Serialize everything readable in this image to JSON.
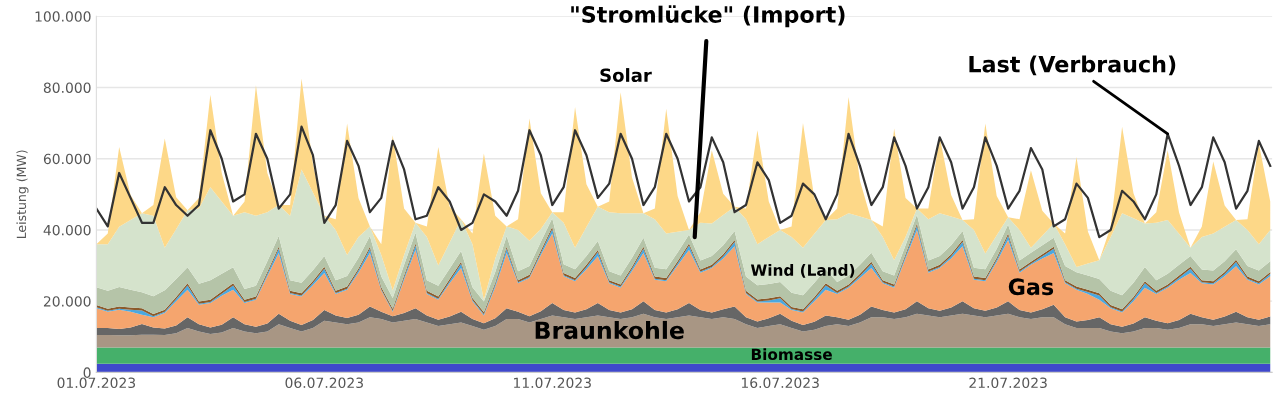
{
  "chart_data": {
    "type": "area",
    "stacked": true,
    "ylabel": "Leistung (MW)",
    "grid": "y",
    "ylim": [
      0,
      100000
    ],
    "yticks": [
      {
        "value": 0,
        "label": "0"
      },
      {
        "value": 20000,
        "label": "20.000"
      },
      {
        "value": 40000,
        "label": "40.000"
      },
      {
        "value": 60000,
        "label": "60.000"
      },
      {
        "value": 80000,
        "label": "80.000"
      },
      {
        "value": 100000,
        "label": "100.000"
      }
    ],
    "xlim": [
      "2023-07-01T00:00",
      "2023-07-26T19:00"
    ],
    "xticks": [
      {
        "value": "2023-07-01",
        "label": "01.07.2023"
      },
      {
        "value": "2023-07-06",
        "label": "06.07.2023"
      },
      {
        "value": "2023-07-11",
        "label": "11.07.2023"
      },
      {
        "value": "2023-07-16",
        "label": "16.07.2023"
      },
      {
        "value": "2023-07-21",
        "label": "21.07.2023"
      }
    ],
    "annotations": [
      {
        "text": "\"Stromlücke\" (Import)",
        "x": "2023-07-14T03:00",
        "y": 38000
      }
    ],
    "x": [
      "2023-07-01T00:00",
      "2023-07-01T06:00",
      "2023-07-01T12:00",
      "2023-07-01T18:00",
      "2023-07-02T00:00",
      "2023-07-02T06:00",
      "2023-07-02T12:00",
      "2023-07-02T18:00",
      "2023-07-03T00:00",
      "2023-07-03T06:00",
      "2023-07-03T12:00",
      "2023-07-03T18:00",
      "2023-07-04T00:00",
      "2023-07-04T06:00",
      "2023-07-04T12:00",
      "2023-07-04T18:00",
      "2023-07-05T00:00",
      "2023-07-05T06:00",
      "2023-07-05T12:00",
      "2023-07-05T18:00",
      "2023-07-06T00:00",
      "2023-07-06T06:00",
      "2023-07-06T12:00",
      "2023-07-06T18:00",
      "2023-07-07T00:00",
      "2023-07-07T06:00",
      "2023-07-07T12:00",
      "2023-07-07T18:00",
      "2023-07-08T00:00",
      "2023-07-08T06:00",
      "2023-07-08T12:00",
      "2023-07-08T18:00",
      "2023-07-09T00:00",
      "2023-07-09T06:00",
      "2023-07-09T12:00",
      "2023-07-09T18:00",
      "2023-07-10T00:00",
      "2023-07-10T06:00",
      "2023-07-10T12:00",
      "2023-07-10T18:00",
      "2023-07-11T00:00",
      "2023-07-11T06:00",
      "2023-07-11T12:00",
      "2023-07-11T18:00",
      "2023-07-12T00:00",
      "2023-07-12T06:00",
      "2023-07-12T12:00",
      "2023-07-12T18:00",
      "2023-07-13T00:00",
      "2023-07-13T06:00",
      "2023-07-13T12:00",
      "2023-07-13T18:00",
      "2023-07-14T00:00",
      "2023-07-14T06:00",
      "2023-07-14T12:00",
      "2023-07-14T18:00",
      "2023-07-15T00:00",
      "2023-07-15T06:00",
      "2023-07-15T12:00",
      "2023-07-15T18:00",
      "2023-07-16T00:00",
      "2023-07-16T06:00",
      "2023-07-16T12:00",
      "2023-07-16T18:00",
      "2023-07-17T00:00",
      "2023-07-17T06:00",
      "2023-07-17T12:00",
      "2023-07-17T18:00",
      "2023-07-18T00:00",
      "2023-07-18T06:00",
      "2023-07-18T12:00",
      "2023-07-18T18:00",
      "2023-07-19T00:00",
      "2023-07-19T06:00",
      "2023-07-19T12:00",
      "2023-07-19T18:00",
      "2023-07-20T00:00",
      "2023-07-20T06:00",
      "2023-07-20T12:00",
      "2023-07-20T18:00",
      "2023-07-21T00:00",
      "2023-07-21T06:00",
      "2023-07-21T12:00",
      "2023-07-21T18:00",
      "2023-07-22T00:00",
      "2023-07-22T06:00",
      "2023-07-22T12:00",
      "2023-07-22T18:00",
      "2023-07-23T00:00",
      "2023-07-23T06:00",
      "2023-07-23T12:00",
      "2023-07-23T18:00",
      "2023-07-24T00:00",
      "2023-07-24T06:00",
      "2023-07-24T12:00",
      "2023-07-24T18:00",
      "2023-07-25T00:00",
      "2023-07-25T06:00",
      "2023-07-25T12:00",
      "2023-07-25T18:00",
      "2023-07-26T00:00",
      "2023-07-26T06:00",
      "2023-07-26T12:00",
      "2023-07-26T18:00"
    ],
    "series": [
      {
        "color": "#3f48cc",
        "values": [
          2400,
          2400,
          2400,
          2400,
          2400,
          2400,
          2400,
          2400,
          2400,
          2400,
          2400,
          2400,
          2400,
          2400,
          2400,
          2400,
          2400,
          2400,
          2400,
          2400,
          2400,
          2400,
          2400,
          2400,
          2400,
          2400,
          2400,
          2400,
          2400,
          2400,
          2400,
          2400,
          2400,
          2400,
          2400,
          2400,
          2400,
          2400,
          2400,
          2400,
          2400,
          2400,
          2400,
          2400,
          2400,
          2400,
          2400,
          2400,
          2400,
          2400,
          2400,
          2400,
          2400,
          2400,
          2400,
          2400,
          2400,
          2400,
          2400,
          2400,
          2400,
          2400,
          2400,
          2400,
          2400,
          2400,
          2400,
          2400,
          2400,
          2400,
          2400,
          2400,
          2400,
          2400,
          2400,
          2400,
          2400,
          2400,
          2400,
          2400,
          2400,
          2400,
          2400,
          2400,
          2400,
          2400,
          2400,
          2400,
          2400,
          2400,
          2400,
          2400,
          2400,
          2400,
          2400,
          2400,
          2400,
          2400,
          2400,
          2400,
          2400,
          2400,
          2400,
          2400
        ]
      },
      {
        "name": "Biomasse",
        "color": "#45b06a",
        "values": [
          4600,
          4600,
          4600,
          4600,
          4600,
          4600,
          4600,
          4600,
          4600,
          4600,
          4600,
          4600,
          4600,
          4600,
          4600,
          4600,
          4600,
          4600,
          4600,
          4600,
          4600,
          4600,
          4600,
          4600,
          4600,
          4600,
          4600,
          4600,
          4600,
          4600,
          4600,
          4600,
          4600,
          4600,
          4600,
          4600,
          4600,
          4600,
          4600,
          4600,
          4600,
          4600,
          4600,
          4600,
          4600,
          4600,
          4600,
          4600,
          4600,
          4600,
          4600,
          4600,
          4600,
          4600,
          4600,
          4600,
          4600,
          4600,
          4600,
          4600,
          4600,
          4600,
          4600,
          4600,
          4600,
          4600,
          4600,
          4600,
          4600,
          4600,
          4600,
          4600,
          4600,
          4600,
          4600,
          4600,
          4600,
          4600,
          4600,
          4600,
          4600,
          4600,
          4600,
          4600,
          4600,
          4600,
          4600,
          4600,
          4600,
          4600,
          4600,
          4600,
          4600,
          4600,
          4600,
          4600,
          4600,
          4600,
          4600,
          4600,
          4600,
          4600,
          4600,
          4600
        ]
      },
      {
        "name": "Braunkohle",
        "color": "#a89684",
        "values": [
          3500,
          3500,
          3400,
          3400,
          3600,
          3600,
          3500,
          4000,
          5500,
          4500,
          3800,
          4200,
          5500,
          4500,
          4000,
          4500,
          6500,
          5500,
          4500,
          5500,
          7500,
          7000,
          6500,
          7000,
          8500,
          8000,
          7000,
          7500,
          8000,
          7000,
          6000,
          6500,
          7000,
          6000,
          5000,
          6000,
          8000,
          8000,
          7000,
          8000,
          9000,
          8500,
          8000,
          8500,
          9000,
          8500,
          8000,
          8500,
          9500,
          8500,
          8000,
          8500,
          9000,
          8500,
          8000,
          8500,
          8000,
          6500,
          5500,
          6000,
          6500,
          5500,
          4500,
          5000,
          6000,
          6500,
          6000,
          7000,
          8500,
          8500,
          8000,
          8500,
          9500,
          9000,
          8500,
          9000,
          9500,
          9000,
          8500,
          9000,
          9500,
          8500,
          8000,
          8500,
          8500,
          6500,
          5500,
          5500,
          5500,
          4500,
          4000,
          4500,
          5500,
          5500,
          5000,
          5500,
          6500,
          6500,
          6000,
          6500,
          7000,
          6500,
          6000,
          6500
        ]
      },
      {
        "color": "#666666",
        "values": [
          2000,
          2000,
          1800,
          2200,
          3000,
          2000,
          1800,
          2200,
          3000,
          2000,
          1800,
          2200,
          3000,
          2000,
          1800,
          2200,
          3000,
          2000,
          1800,
          2200,
          3000,
          2000,
          1800,
          2200,
          3000,
          2000,
          1800,
          2200,
          3000,
          2000,
          1800,
          2200,
          3000,
          2000,
          1800,
          2200,
          3000,
          2000,
          1800,
          2200,
          3500,
          2000,
          1800,
          2200,
          3500,
          2000,
          1800,
          2200,
          3500,
          2000,
          1800,
          2200,
          3500,
          2000,
          1800,
          2200,
          3500,
          2000,
          1800,
          2200,
          3000,
          2000,
          1800,
          2200,
          3000,
          2000,
          1800,
          2200,
          3000,
          2000,
          1800,
          2200,
          3500,
          2000,
          1800,
          2200,
          3500,
          2000,
          1800,
          2200,
          3500,
          2000,
          1800,
          2200,
          3500,
          2000,
          1800,
          2200,
          3000,
          2000,
          1800,
          2200,
          3000,
          2000,
          1800,
          2200,
          3000,
          2000,
          1800,
          2200,
          3000,
          2000,
          1800,
          2200
        ]
      },
      {
        "name": "Gas",
        "color": "#f5a56e",
        "values": [
          5500,
          4500,
          5400,
          4400,
          2600,
          2900,
          4400,
          6800,
          7700,
          5500,
          6900,
          8100,
          7700,
          6000,
          7600,
          13300,
          17000,
          7500,
          8000,
          9800,
          10400,
          6000,
          7900,
          11800,
          15000,
          6000,
          1200,
          9300,
          16400,
          6000,
          5600,
          9300,
          12300,
          5000,
          2200,
          8800,
          15500,
          8000,
          10700,
          15800,
          19500,
          9500,
          8800,
          11300,
          13100,
          7500,
          7000,
          10800,
          13500,
          8500,
          8800,
          12300,
          14900,
          10500,
          12500,
          14300,
          16900,
          6500,
          5300,
          4400,
          3100,
          3000,
          3500,
          5800,
          7200,
          6500,
          9000,
          10300,
          10800,
          7500,
          7000,
          14300,
          20000,
          10000,
          12000,
          13800,
          15400,
          8000,
          8300,
          12800,
          17200,
          10500,
          13400,
          14300,
          14500,
          9500,
          8900,
          7300,
          4900,
          4500,
          4000,
          6300,
          8300,
          7500,
          10000,
          11300,
          11400,
          9500,
          9900,
          11300,
          12800,
          10500,
          9900,
          11300
        ]
      },
      {
        "color": "#4aa8e0",
        "values": [
          300,
          300,
          300,
          600,
          1200,
          300,
          300,
          600,
          1200,
          300,
          300,
          600,
          1200,
          300,
          300,
          600,
          1200,
          300,
          300,
          600,
          1200,
          300,
          300,
          600,
          1200,
          300,
          300,
          600,
          1200,
          300,
          300,
          600,
          1200,
          300,
          300,
          600,
          1200,
          300,
          300,
          600,
          1200,
          300,
          300,
          600,
          1200,
          300,
          300,
          600,
          1200,
          300,
          300,
          600,
          1200,
          300,
          300,
          600,
          1200,
          300,
          300,
          600,
          1200,
          300,
          300,
          600,
          1200,
          300,
          300,
          600,
          1200,
          300,
          300,
          600,
          1200,
          300,
          300,
          600,
          1200,
          300,
          300,
          600,
          1200,
          300,
          300,
          600,
          1200,
          300,
          300,
          600,
          1200,
          300,
          300,
          600,
          1200,
          300,
          300,
          600,
          1200,
          300,
          300,
          600,
          1200,
          300,
          300,
          600
        ]
      },
      {
        "color": "#8b5a2b",
        "values": [
          600,
          600,
          600,
          600,
          600,
          600,
          600,
          600,
          600,
          600,
          600,
          600,
          600,
          600,
          600,
          600,
          600,
          600,
          600,
          600,
          600,
          600,
          600,
          600,
          600,
          600,
          600,
          600,
          600,
          600,
          600,
          600,
          600,
          600,
          600,
          600,
          600,
          600,
          600,
          600,
          600,
          600,
          600,
          600,
          600,
          600,
          600,
          600,
          600,
          600,
          600,
          600,
          600,
          600,
          600,
          600,
          600,
          600,
          600,
          600,
          600,
          600,
          600,
          600,
          600,
          600,
          600,
          600,
          600,
          600,
          600,
          600,
          600,
          600,
          600,
          600,
          600,
          600,
          600,
          600,
          600,
          600,
          600,
          600,
          600,
          600,
          600,
          600,
          600,
          600,
          600,
          600,
          600,
          600,
          600,
          600,
          600,
          600,
          600,
          600,
          600,
          600,
          600,
          600
        ]
      },
      {
        "color": "#b5c4a8",
        "values": [
          5000,
          5000,
          5500,
          5000,
          4500,
          5000,
          5500,
          5000,
          4500,
          5000,
          5500,
          5000,
          4500,
          3000,
          3000,
          3000,
          3000,
          3000,
          3000,
          3000,
          3000,
          3000,
          3000,
          3000,
          3000,
          3000,
          3000,
          3000,
          3000,
          3000,
          3000,
          3000,
          3000,
          3000,
          3000,
          3000,
          3000,
          2500,
          2500,
          2500,
          2500,
          2500,
          2500,
          2500,
          2500,
          2500,
          2500,
          2500,
          2500,
          2500,
          2500,
          2500,
          2500,
          2500,
          2500,
          2500,
          2500,
          4000,
          4000,
          4000,
          4000,
          4000,
          4000,
          4000,
          4000,
          2500,
          2500,
          2500,
          2500,
          2500,
          2500,
          2500,
          2500,
          2500,
          2500,
          2500,
          2500,
          2500,
          2500,
          2500,
          2500,
          2500,
          2500,
          2500,
          2500,
          4000,
          4000,
          4000,
          4000,
          4000,
          4000,
          4000,
          4000,
          3000,
          3000,
          3000,
          3000,
          3000,
          3000,
          3000,
          3000,
          3000,
          3000,
          3000
        ]
      },
      {
        "name": "Wind (Land)",
        "color": "#d5e3cc",
        "values": [
          12100,
          13100,
          16900,
          19600,
          22200,
          22600,
          11900,
          14000,
          16000,
          21100,
          26100,
          20300,
          14500,
          21600,
          19700,
          13800,
          8700,
          18100,
          31800,
          21800,
          11300,
          14100,
          5900,
          5800,
          2700,
          6100,
          2100,
          2800,
          2800,
          12100,
          5700,
          7300,
          8900,
          12100,
          500,
          3800,
          2700,
          11600,
          7100,
          3600,
          1700,
          11600,
          6000,
          8100,
          9600,
          16600,
          17500,
          12500,
          6900,
          13600,
          10000,
          5800,
          1300,
          10600,
          9100,
          8500,
          6800,
          16100,
          11500,
          13200,
          14600,
          15600,
          13300,
          13700,
          13800,
          17600,
          17500,
          13600,
          9200,
          9600,
          4300,
          2300,
          1700,
          11600,
          12000,
          8100,
          3100,
          10600,
          4400,
          3800,
          2100,
          8600,
          1400,
          2700,
          4000,
          6100,
          1500,
          3400,
          5300,
          15100,
          23000,
          18100,
          12200,
          16100,
          15100,
          8700,
          2300,
          9100,
          10400,
          9700,
          8200,
          10100,
          7400,
          8800
        ]
      },
      {
        "name": "Solar",
        "color": "#fdd888",
        "values": [
          0,
          3000,
          22400,
          7000,
          0,
          3000,
          30700,
          9000,
          0,
          3000,
          26000,
          8000,
          0,
          3000,
          36600,
          11000,
          0,
          3000,
          25500,
          8000,
          0,
          3000,
          36900,
          11000,
          0,
          3000,
          43600,
          13000,
          0,
          3000,
          33300,
          10000,
          0,
          3000,
          41100,
          12000,
          0,
          3000,
          34300,
          10000,
          0,
          3000,
          39500,
          12000,
          0,
          3000,
          34000,
          10000,
          0,
          3000,
          35000,
          10000,
          0,
          3000,
          20600,
          6000,
          0,
          3000,
          32000,
          10000,
          0,
          3000,
          35000,
          10000,
          0,
          3000,
          32600,
          10000,
          0,
          3000,
          37000,
          11000,
          0,
          3000,
          21400,
          6000,
          0,
          3000,
          36500,
          11000,
          0,
          3000,
          21800,
          7000,
          0,
          3000,
          30900,
          9000,
          0,
          3000,
          24300,
          7000,
          0,
          3000,
          19600,
          6000,
          0,
          3000,
          20200,
          6000,
          0,
          3000,
          28300,
          8000
        ]
      },
      {
        "name": "Last (Verbrauch)",
        "type": "line",
        "color": "#333333",
        "values": [
          46000,
          41000,
          56000,
          49000,
          42000,
          42000,
          52000,
          47000,
          44000,
          47000,
          68000,
          60000,
          48000,
          50000,
          67000,
          60000,
          46000,
          50000,
          69000,
          61000,
          42000,
          47000,
          65000,
          58000,
          45000,
          49000,
          65000,
          57000,
          43000,
          44000,
          52000,
          48000,
          40000,
          42000,
          50000,
          48000,
          44000,
          51000,
          68000,
          61000,
          47000,
          52000,
          68000,
          61000,
          49000,
          53000,
          67000,
          60000,
          47000,
          52000,
          67000,
          60000,
          48000,
          52000,
          66000,
          59000,
          45000,
          47000,
          59000,
          54000,
          42000,
          44000,
          53000,
          50000,
          43000,
          50000,
          67000,
          58000,
          47000,
          52000,
          66000,
          58000,
          46000,
          52000,
          66000,
          59000,
          46000,
          52000,
          66000,
          58000,
          46000,
          51000,
          63000,
          57000,
          41000,
          43000,
          53000,
          49000,
          38000,
          40000,
          51000,
          48000,
          43000,
          50000,
          67000,
          58000,
          47000,
          52000,
          66000,
          59000,
          46000,
          51000,
          65000,
          58000
        ]
      }
    ]
  }
}
